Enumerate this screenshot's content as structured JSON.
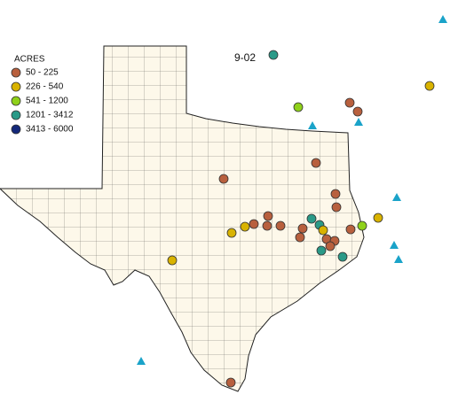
{
  "legend": {
    "title": "ACRES",
    "items": [
      {
        "label": "50 - 225",
        "color": "#b8603e"
      },
      {
        "label": "226 - 540",
        "color": "#d9b300"
      },
      {
        "label": "541 - 1200",
        "color": "#8fd11a"
      },
      {
        "label": "1201 - 3412",
        "color": "#2a9a88"
      },
      {
        "label": "3413 - 6000",
        "color": "#14287a"
      }
    ]
  },
  "map_label": "9-02"
}
